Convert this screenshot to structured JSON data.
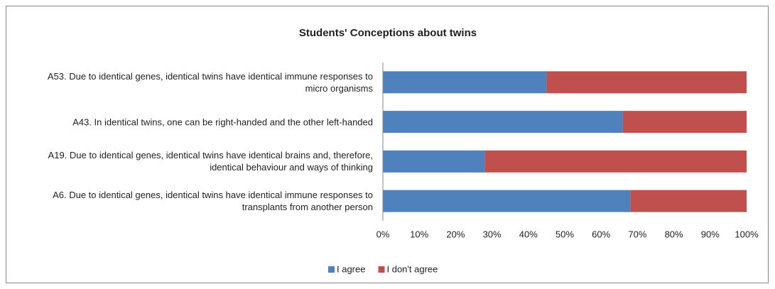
{
  "chart_data": {
    "type": "stacked_bar_horizontal",
    "title": "Students' Conceptions about twins",
    "categories": [
      "A53. Due to identical genes, identical twins have identical immune responses to micro organisms",
      "A43. In identical twins, one can be right-handed and the other left-handed",
      "A19. Due to identical genes, identical twins have identical brains and, therefore, identical behaviour and ways of thinking",
      "A6. Due to identical genes, identical twins have identical immune responses to transplants from another person"
    ],
    "series": [
      {
        "name": "I agree",
        "color": "#4f81bd",
        "values": [
          45,
          66,
          28,
          68
        ]
      },
      {
        "name": "I don't agree",
        "color": "#c0504d",
        "values": [
          55,
          34,
          72,
          32
        ]
      }
    ],
    "xlim": [
      0,
      100
    ],
    "xticks": [
      {
        "value": 0,
        "label": "0%"
      },
      {
        "value": 10,
        "label": "10%"
      },
      {
        "value": 20,
        "label": "20%"
      },
      {
        "value": 30,
        "label": "30%"
      },
      {
        "value": 40,
        "label": "40%"
      },
      {
        "value": 50,
        "label": "50%"
      },
      {
        "value": 60,
        "label": "60%"
      },
      {
        "value": 70,
        "label": "70%"
      },
      {
        "value": 80,
        "label": "80%"
      },
      {
        "value": 90,
        "label": "90%"
      },
      {
        "value": 100,
        "label": "100%"
      }
    ],
    "legend": "bottom"
  }
}
